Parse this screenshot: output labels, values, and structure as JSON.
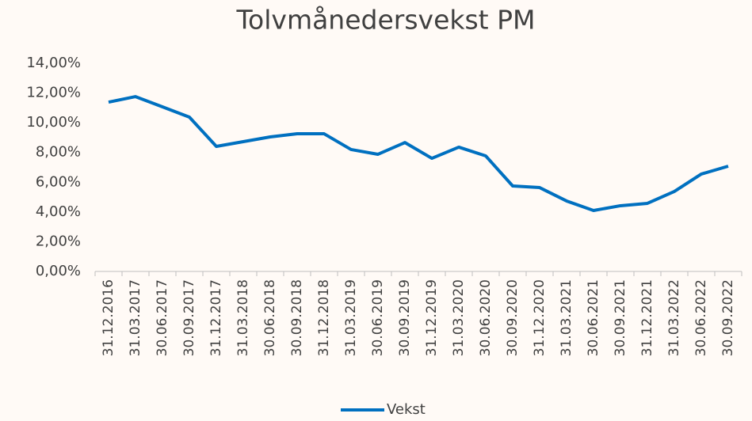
{
  "chart_data": {
    "type": "line",
    "title": "Tolvmånedersvekst PM",
    "categories": [
      "31.12.2016",
      "31.03.2017",
      "30.06.2017",
      "30.09.2017",
      "31.12.2017",
      "31.03.2018",
      "30.06.2018",
      "30.09.2018",
      "31.12.2018",
      "31.03.2019",
      "30.06.2019",
      "30.09.2019",
      "31.12.2019",
      "31.03.2020",
      "30.06.2020",
      "30.09.2020",
      "31.12.2020",
      "31.03.2021",
      "30.06.2021",
      "30.09.2021",
      "31.12.2021",
      "31.03.2022",
      "30.06.2022",
      "30.09.2022"
    ],
    "series": [
      {
        "name": "Vekst",
        "color": "#0070c0",
        "values": [
          11.39,
          11.76,
          11.07,
          10.38,
          8.41,
          8.73,
          9.05,
          9.26,
          9.26,
          8.2,
          7.88,
          8.67,
          7.61,
          8.36,
          7.77,
          5.75,
          5.64,
          4.74,
          4.1,
          4.42,
          4.58,
          5.38,
          6.55,
          7.08
        ]
      }
    ],
    "ylim": [
      0,
      14
    ],
    "yticks": [
      {
        "value": 0,
        "label": "0,00%"
      },
      {
        "value": 2,
        "label": "2,00%"
      },
      {
        "value": 4,
        "label": "4,00%"
      },
      {
        "value": 6,
        "label": "6,00%"
      },
      {
        "value": 8,
        "label": "8,00%"
      },
      {
        "value": 10,
        "label": "10,00%"
      },
      {
        "value": 12,
        "label": "12,00%"
      },
      {
        "value": 14,
        "label": "14,00%"
      }
    ],
    "grid": false,
    "legend": "bottom"
  }
}
